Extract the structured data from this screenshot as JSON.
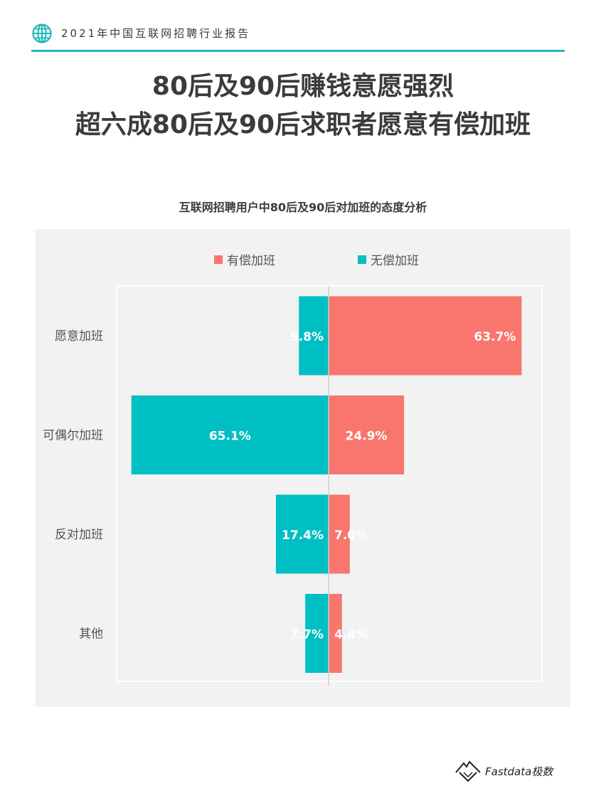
{
  "header": {
    "title": "2021年中国互联网招聘行业报告",
    "icon": "globe-icon"
  },
  "headline": {
    "line1": "80后及90后赚钱意愿强烈",
    "line2": "超六成80后及90后求职者愿意有偿加班"
  },
  "footer": {
    "brand": "Fastdata极数",
    "icon": "mountain-logo-icon"
  },
  "colors": {
    "paid": "#f8766d",
    "unpaid": "#00bfc4",
    "accent": "#1fb6ba"
  },
  "chart_data": {
    "type": "bar",
    "orientation": "horizontal-diverging",
    "title": "互联网招聘用户中80后及90后对加班的态度分析",
    "legend_position": "top-center",
    "categories": [
      "愿意加班",
      "可偶尔加班",
      "反对加班",
      "其他"
    ],
    "series": [
      {
        "name": "有偿加班",
        "values": [
          63.7,
          24.9,
          7.0,
          4.4
        ],
        "labels": [
          "63.7%",
          "24.9%",
          "7.0%",
          "4.4%"
        ],
        "direction": "right"
      },
      {
        "name": "无偿加班",
        "values": [
          9.8,
          65.1,
          17.4,
          7.7
        ],
        "labels": [
          "9.8%",
          "65.1%",
          "17.4%",
          "7.7%"
        ],
        "direction": "left"
      }
    ],
    "unit": "%"
  }
}
